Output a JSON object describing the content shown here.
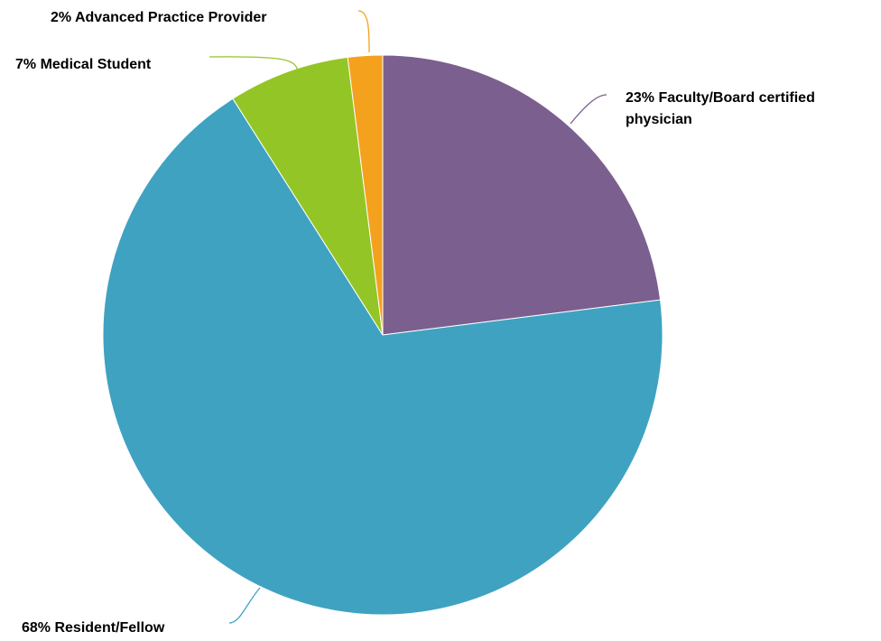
{
  "chart_data": {
    "type": "pie",
    "start_angle_deg": 0,
    "direction": "clockwise",
    "slices": [
      {
        "name": "Faculty/Board certified physician",
        "value": 23,
        "color": "#7B5F8F",
        "label_lines": [
          "23% Faculty/Board certified",
          "physician"
        ]
      },
      {
        "name": "Resident/Fellow",
        "value": 68,
        "color": "#3FA2C1",
        "label_lines": [
          "68% Resident/Fellow"
        ]
      },
      {
        "name": "Medical Student",
        "value": 7,
        "color": "#94C526",
        "label_lines": [
          "7% Medical Student"
        ]
      },
      {
        "name": "Advanced Practice Provider",
        "value": 2,
        "color": "#F4A11D",
        "label_lines": [
          "2% Advanced Practice Provider"
        ]
      }
    ]
  }
}
